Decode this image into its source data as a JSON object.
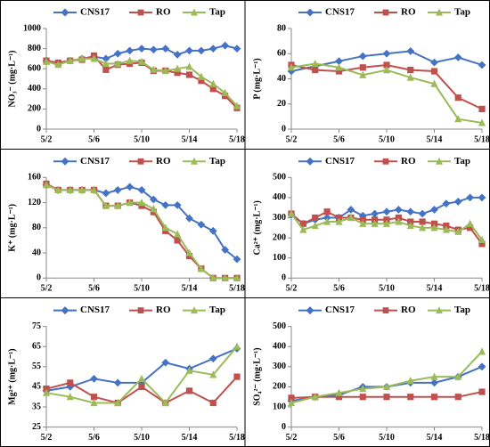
{
  "chart_data": [
    {
      "type": "line",
      "ylabel": "NO₃⁻ (mg·L⁻¹)",
      "x": [
        2,
        3,
        4,
        5,
        6,
        7,
        8,
        9,
        10,
        11,
        12,
        13,
        14,
        15,
        16,
        17,
        18
      ],
      "xlim": [
        2,
        18
      ],
      "xticks": [
        {
          "value": 2,
          "label": "5/2"
        },
        {
          "value": 6,
          "label": "5/6"
        },
        {
          "value": 10,
          "label": "5/10"
        },
        {
          "value": 14,
          "label": "5/14"
        },
        {
          "value": 18,
          "label": "5/18"
        }
      ],
      "ylim": [
        0,
        1000
      ],
      "yticks": [
        0,
        200,
        400,
        600,
        800,
        1000
      ],
      "series": [
        {
          "name": "CNS17",
          "color": "#4472c4",
          "marker": "diamond",
          "values": [
            680,
            650,
            680,
            700,
            720,
            700,
            750,
            780,
            800,
            790,
            800,
            740,
            780,
            780,
            800,
            830,
            800
          ]
        },
        {
          "name": "RO",
          "color": "#c0504d",
          "marker": "square",
          "values": [
            680,
            660,
            680,
            690,
            730,
            590,
            640,
            650,
            660,
            580,
            580,
            560,
            540,
            480,
            400,
            330,
            210
          ]
        },
        {
          "name": "Tap",
          "color": "#9bbb59",
          "marker": "triangle",
          "values": [
            670,
            640,
            680,
            700,
            700,
            650,
            650,
            680,
            670,
            590,
            580,
            600,
            620,
            520,
            450,
            360,
            230
          ]
        }
      ]
    },
    {
      "type": "line",
      "ylabel": "P (mg·L⁻¹)",
      "x": [
        2,
        4,
        6,
        8,
        10,
        12,
        14,
        16,
        18
      ],
      "xlim": [
        2,
        18
      ],
      "xticks": [
        {
          "value": 2,
          "label": "5/2"
        },
        {
          "value": 6,
          "label": "5/6"
        },
        {
          "value": 10,
          "label": "5/10"
        },
        {
          "value": 14,
          "label": "5/14"
        },
        {
          "value": 18,
          "label": "5/18"
        }
      ],
      "ylim": [
        0,
        80
      ],
      "yticks": [
        0,
        20,
        40,
        60,
        80
      ],
      "series": [
        {
          "name": "CNS17",
          "color": "#4472c4",
          "marker": "diamond",
          "values": [
            46,
            50,
            54,
            58,
            60,
            62,
            53,
            57,
            51
          ]
        },
        {
          "name": "RO",
          "color": "#c0504d",
          "marker": "square",
          "values": [
            51,
            47,
            46,
            49,
            51,
            47,
            46,
            25,
            16
          ]
        },
        {
          "name": "Tap",
          "color": "#9bbb59",
          "marker": "triangle",
          "values": [
            49,
            52,
            49,
            43,
            47,
            41,
            36,
            8,
            5
          ]
        }
      ]
    },
    {
      "type": "line",
      "ylabel": "K⁺ (mg·L⁻¹)",
      "x": [
        2,
        3,
        4,
        5,
        6,
        7,
        8,
        9,
        10,
        11,
        12,
        13,
        14,
        15,
        16,
        17,
        18
      ],
      "xlim": [
        2,
        18
      ],
      "xticks": [
        {
          "value": 2,
          "label": "5/2"
        },
        {
          "value": 6,
          "label": "5/6"
        },
        {
          "value": 10,
          "label": "5/10"
        },
        {
          "value": 14,
          "label": "5/14"
        },
        {
          "value": 18,
          "label": "5/18"
        }
      ],
      "ylim": [
        0,
        160
      ],
      "yticks": [
        0,
        40,
        80,
        120,
        160
      ],
      "series": [
        {
          "name": "CNS17",
          "color": "#4472c4",
          "marker": "diamond",
          "values": [
            148,
            140,
            140,
            140,
            140,
            135,
            140,
            145,
            140,
            125,
            116,
            116,
            95,
            85,
            75,
            45,
            30
          ]
        },
        {
          "name": "RO",
          "color": "#c0504d",
          "marker": "square",
          "values": [
            150,
            140,
            140,
            140,
            140,
            115,
            115,
            120,
            115,
            105,
            75,
            60,
            35,
            15,
            0,
            0,
            0
          ]
        },
        {
          "name": "Tap",
          "color": "#9bbb59",
          "marker": "triangle",
          "values": [
            148,
            140,
            140,
            140,
            140,
            115,
            115,
            120,
            120,
            110,
            80,
            70,
            40,
            15,
            0,
            0,
            0
          ]
        }
      ]
    },
    {
      "type": "line",
      "ylabel": "Ca²⁺ (mg·L⁻¹)",
      "x": [
        2,
        3,
        4,
        5,
        6,
        7,
        8,
        9,
        10,
        11,
        12,
        13,
        14,
        15,
        16,
        17,
        18
      ],
      "xlim": [
        2,
        18
      ],
      "xticks": [
        {
          "value": 2,
          "label": "5/2"
        },
        {
          "value": 6,
          "label": "5/6"
        },
        {
          "value": 10,
          "label": "5/10"
        },
        {
          "value": 14,
          "label": "5/14"
        },
        {
          "value": 18,
          "label": "5/18"
        }
      ],
      "ylim": [
        0,
        500
      ],
      "yticks": [
        0,
        100,
        200,
        300,
        400,
        500
      ],
      "series": [
        {
          "name": "CNS17",
          "color": "#4472c4",
          "marker": "diamond",
          "values": [
            315,
            270,
            290,
            300,
            300,
            340,
            310,
            320,
            330,
            340,
            330,
            320,
            340,
            370,
            380,
            400,
            400
          ]
        },
        {
          "name": "RO",
          "color": "#c0504d",
          "marker": "square",
          "values": [
            320,
            270,
            300,
            330,
            300,
            300,
            290,
            290,
            290,
            300,
            280,
            280,
            270,
            260,
            240,
            250,
            170
          ]
        },
        {
          "name": "Tap",
          "color": "#9bbb59",
          "marker": "triangle",
          "values": [
            320,
            240,
            260,
            280,
            280,
            300,
            270,
            270,
            270,
            280,
            260,
            250,
            250,
            240,
            230,
            270,
            190
          ]
        }
      ]
    },
    {
      "type": "line",
      "ylabel": "Mg²⁺ (mg·L⁻¹)",
      "x": [
        2,
        4,
        6,
        8,
        10,
        12,
        14,
        16,
        18
      ],
      "xlim": [
        2,
        18
      ],
      "xticks": [
        {
          "value": 2,
          "label": "5/2"
        },
        {
          "value": 6,
          "label": "5/6"
        },
        {
          "value": 10,
          "label": "5/10"
        },
        {
          "value": 14,
          "label": "5/14"
        },
        {
          "value": 18,
          "label": "5/18"
        }
      ],
      "ylim": [
        25,
        75
      ],
      "yticks": [
        25,
        35,
        45,
        55,
        65,
        75
      ],
      "series": [
        {
          "name": "CNS17",
          "color": "#4472c4",
          "marker": "diamond",
          "values": [
            43,
            45,
            49,
            47,
            47,
            57,
            54,
            59,
            64
          ]
        },
        {
          "name": "RO",
          "color": "#c0504d",
          "marker": "square",
          "values": [
            44,
            47,
            40,
            37,
            45,
            37,
            43,
            37,
            50
          ]
        },
        {
          "name": "Tap",
          "color": "#9bbb59",
          "marker": "triangle",
          "values": [
            42,
            40,
            37,
            37,
            49,
            37,
            53,
            51,
            65
          ]
        }
      ]
    },
    {
      "type": "line",
      "ylabel": "SO₄²⁻ (mg·L⁻¹)",
      "x": [
        2,
        4,
        6,
        8,
        10,
        12,
        14,
        16,
        18
      ],
      "xlim": [
        2,
        18
      ],
      "xticks": [
        {
          "value": 2,
          "label": "5/2"
        },
        {
          "value": 6,
          "label": "5/6"
        },
        {
          "value": 10,
          "label": "5/10"
        },
        {
          "value": 14,
          "label": "5/14"
        },
        {
          "value": 18,
          "label": "5/18"
        }
      ],
      "ylim": [
        0,
        500
      ],
      "yticks": [
        0,
        100,
        200,
        300,
        400,
        500
      ],
      "series": [
        {
          "name": "CNS17",
          "color": "#4472c4",
          "marker": "diamond",
          "values": [
            130,
            150,
            160,
            200,
            200,
            220,
            220,
            250,
            300
          ]
        },
        {
          "name": "RO",
          "color": "#c0504d",
          "marker": "square",
          "values": [
            145,
            150,
            150,
            150,
            150,
            150,
            150,
            150,
            175
          ]
        },
        {
          "name": "Tap",
          "color": "#9bbb59",
          "marker": "triangle",
          "values": [
            120,
            150,
            170,
            190,
            200,
            230,
            250,
            250,
            375
          ]
        }
      ]
    }
  ]
}
